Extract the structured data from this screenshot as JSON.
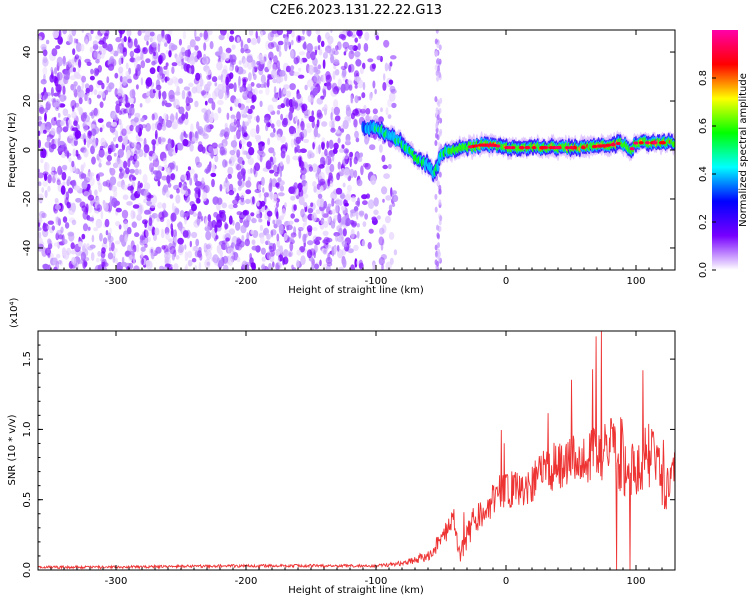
{
  "figure_title": "C2E6.2023.131.22.22.G13",
  "chart_data": [
    {
      "type": "heatmap",
      "title": "C2E6.2023.131.22.22.G13",
      "xlabel": "Height of straight line (km)",
      "ylabel": "Frequency (Hz)",
      "xlim": [
        -360,
        130
      ],
      "ylim": [
        -49,
        49
      ],
      "xticks": [
        -300,
        -200,
        -100,
        0,
        100
      ],
      "xtick_labels": [
        "-300",
        "-200",
        "-100",
        "0",
        "100"
      ],
      "yticks": [
        -40,
        -20,
        0,
        20,
        40
      ],
      "ytick_labels": [
        "-40",
        "-20",
        "0",
        "20",
        "40"
      ],
      "colorbar": {
        "label": "Normalized spectral amplitude",
        "range": [
          0,
          1
        ],
        "ticks": [
          0.0,
          0.2,
          0.4,
          0.6,
          0.8
        ],
        "tick_labels": [
          "0.0",
          "0.2",
          "0.4",
          "0.6",
          "0.8"
        ],
        "colors": [
          "#ffffff",
          "#7700ff",
          "#0000ff",
          "#00ffff",
          "#00ff00",
          "#ffff00",
          "#ff0000",
          "#ff00aa"
        ]
      },
      "noise_region": {
        "x_from": -360,
        "x_to": -85,
        "gap_from": -85,
        "gap_to": -57,
        "vertical_stripe_x": -52,
        "noise_color": "#7700ff"
      },
      "ridge": {
        "x": [
          -110,
          -100,
          -90,
          -80,
          -70,
          -60,
          -55,
          -50,
          -45,
          -40,
          -30,
          -20,
          -10,
          0,
          20,
          40,
          60,
          80,
          90,
          95,
          100,
          110,
          120,
          130
        ],
        "freq": [
          9,
          9,
          6,
          3,
          -3,
          -6,
          -10,
          -2,
          0,
          0,
          1,
          2,
          2,
          1,
          1,
          1,
          1,
          2,
          3,
          -1,
          3,
          3,
          3,
          3
        ],
        "amplitude": [
          0.4,
          0.45,
          0.45,
          0.5,
          0.5,
          0.5,
          0.45,
          0.5,
          0.55,
          0.6,
          0.65,
          0.7,
          0.75,
          0.7,
          0.7,
          0.75,
          0.75,
          0.75,
          0.7,
          0.6,
          0.7,
          0.75,
          0.75,
          0.75
        ]
      }
    },
    {
      "type": "line",
      "xlabel": "Height of straight line (km)",
      "ylabel": "SNR (10 * v/v)",
      "y_multiplier": "(x10⁴)",
      "xlim": [
        -360,
        130
      ],
      "ylim": [
        0,
        1.7
      ],
      "xticks": [
        -300,
        -200,
        -100,
        0,
        100
      ],
      "xtick_labels": [
        "-300",
        "-200",
        "-100",
        "0",
        "100"
      ],
      "yticks": [
        0.0,
        0.5,
        1.0,
        1.5
      ],
      "ytick_labels": [
        "0.0",
        "0.5",
        "1.0",
        "1.5"
      ],
      "series": [
        {
          "color": "#ee3333",
          "x": [
            -360,
            -300,
            -200,
            -150,
            -100,
            -80,
            -60,
            -50,
            -45,
            -40,
            -35,
            -30,
            -25,
            -20,
            -15,
            -10,
            -5,
            0,
            10,
            20,
            30,
            40,
            50,
            60,
            70,
            80,
            85,
            90,
            95,
            100,
            110,
            120,
            130
          ],
          "y": [
            0.02,
            0.02,
            0.03,
            0.03,
            0.03,
            0.05,
            0.1,
            0.2,
            0.3,
            0.35,
            0.1,
            0.25,
            0.35,
            0.4,
            0.45,
            0.5,
            0.55,
            0.55,
            0.6,
            0.62,
            0.7,
            0.75,
            0.8,
            0.8,
            0.82,
            0.85,
            0.9,
            0.8,
            0.75,
            0.75,
            0.8,
            0.7,
            0.6
          ],
          "noise": [
            0.01,
            0.01,
            0.01,
            0.01,
            0.01,
            0.02,
            0.04,
            0.08,
            0.1,
            0.1,
            0.06,
            0.1,
            0.12,
            0.12,
            0.12,
            0.14,
            0.14,
            0.14,
            0.15,
            0.15,
            0.16,
            0.18,
            0.18,
            0.18,
            0.2,
            0.22,
            0.3,
            0.28,
            0.26,
            0.25,
            0.25,
            0.25,
            0.25
          ]
        }
      ]
    }
  ]
}
